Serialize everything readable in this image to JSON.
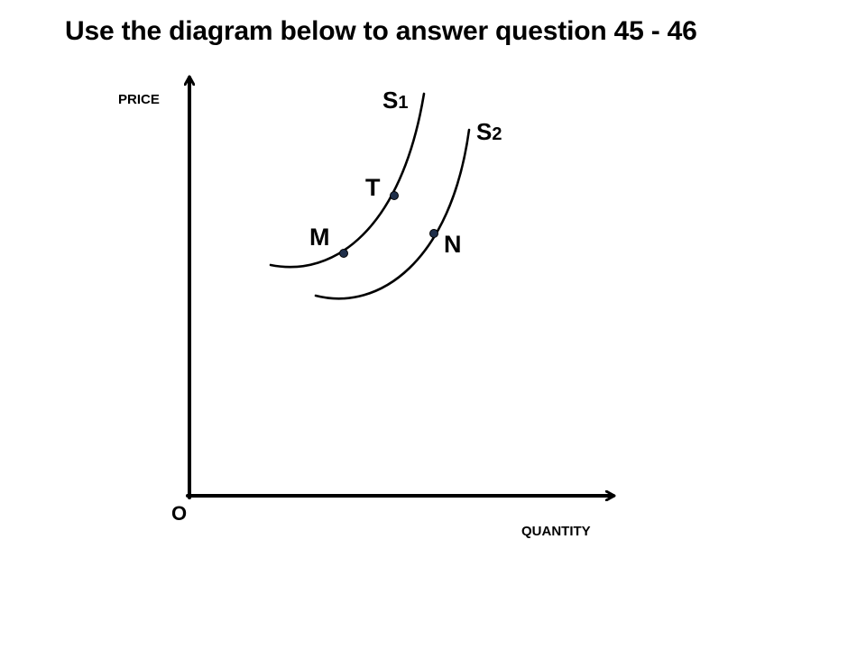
{
  "title": "Use the diagram below to answer question 45 - 46",
  "axes": {
    "y_label": "PRICE",
    "x_label": "QUANTITY",
    "origin_label": "O"
  },
  "curves": [
    {
      "id": "s1",
      "letter": "S",
      "subscript": "1"
    },
    {
      "id": "s2",
      "letter": "S",
      "subscript": "2"
    }
  ],
  "points": [
    {
      "id": "t",
      "label": "T",
      "curve": "s1"
    },
    {
      "id": "m",
      "label": "M",
      "curve": "s1"
    },
    {
      "id": "n",
      "label": "N",
      "curve": "s2"
    }
  ],
  "colors": {
    "line": "#000000",
    "point_fill": "#1f2f4a"
  }
}
